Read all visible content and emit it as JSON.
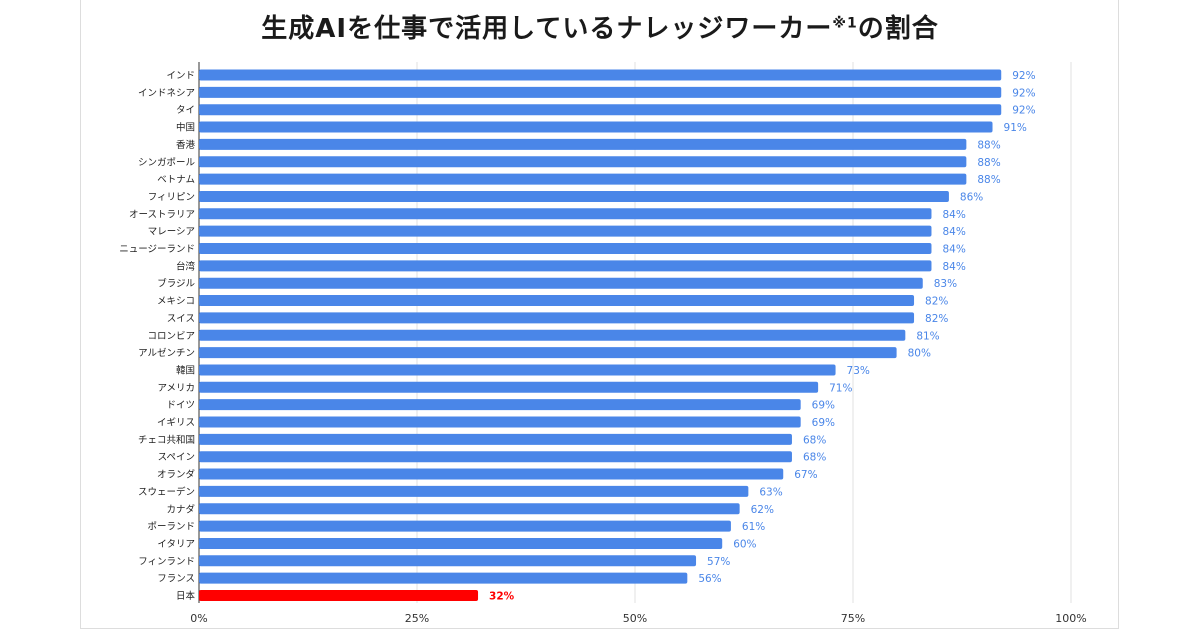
{
  "title": {
    "main": "生成AIを仕事で活用しているナレッジワーカー",
    "note": "※1",
    "suffix": "の割合"
  },
  "colors": {
    "bar": "#4a86e8",
    "highlight_bar": "#ff0000",
    "value_label": "#4a86e8",
    "highlight_label": "#ff0000",
    "grid": "#e0e0e0",
    "axis": "#333333"
  },
  "chart_data": {
    "type": "bar",
    "orientation": "horizontal",
    "title": "生成AIを仕事で活用しているナレッジワーカー※1の割合",
    "xlabel": "",
    "ylabel": "",
    "xlim": [
      0,
      100
    ],
    "ticks": [
      "0%",
      "25%",
      "50%",
      "75%",
      "100%"
    ],
    "tick_values": [
      0,
      25,
      50,
      75,
      100
    ],
    "grid": true,
    "highlight_category": "日本",
    "categories": [
      "インド",
      "インドネシア",
      "タイ",
      "中国",
      "香港",
      "シンガポール",
      "ベトナム",
      "フィリピン",
      "オーストラリア",
      "マレーシア",
      "ニュージーランド",
      "台湾",
      "ブラジル",
      "メキシコ",
      "スイス",
      "コロンビア",
      "アルゼンチン",
      "韓国",
      "アメリカ",
      "ドイツ",
      "イギリス",
      "チェコ共和国",
      "スペイン",
      "オランダ",
      "スウェーデン",
      "カナダ",
      "ポーランド",
      "イタリア",
      "フィンランド",
      "フランス",
      "日本"
    ],
    "values": [
      92,
      92,
      92,
      91,
      88,
      88,
      88,
      86,
      84,
      84,
      84,
      84,
      83,
      82,
      82,
      81,
      80,
      73,
      71,
      69,
      69,
      68,
      68,
      67,
      63,
      62,
      61,
      60,
      57,
      56,
      32
    ],
    "value_labels": [
      "92%",
      "92%",
      "92%",
      "91%",
      "88%",
      "88%",
      "88%",
      "86%",
      "84%",
      "84%",
      "84%",
      "84%",
      "83%",
      "82%",
      "82%",
      "81%",
      "80%",
      "73%",
      "71%",
      "69%",
      "69%",
      "68%",
      "68%",
      "67%",
      "63%",
      "62%",
      "61%",
      "60%",
      "57%",
      "56%",
      "32%"
    ]
  }
}
